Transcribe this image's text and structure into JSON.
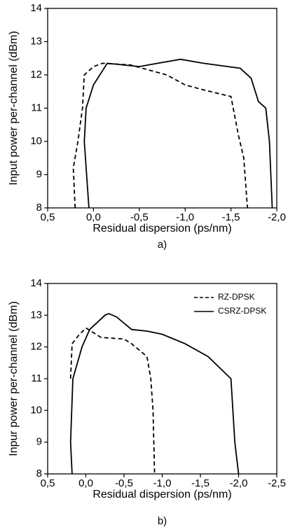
{
  "chart_data": [
    {
      "type": "line",
      "caption": "a)",
      "x_label": "Residual dispersion (ps/nm)",
      "y_label": "Input power per-channel (dBm)",
      "xlim": [
        0.5,
        -2.0
      ],
      "ylim": [
        8,
        14
      ],
      "xticks": [
        {
          "value": 0.5,
          "label": "0,5"
        },
        {
          "value": 0,
          "label": "0,0"
        },
        {
          "value": -0.5,
          "label": "-0,5"
        },
        {
          "value": -1.0,
          "label": "-1,0"
        },
        {
          "value": -1.5,
          "label": "-1,5"
        },
        {
          "value": -2.0,
          "label": "-2,0"
        }
      ],
      "yticks": [
        8,
        9,
        10,
        11,
        12,
        13,
        14
      ],
      "series": [
        {
          "color": "#000000",
          "line_style": "solid",
          "x": [
            0.05,
            0.1,
            0.08,
            0.0,
            -0.15,
            -0.5,
            -0.7,
            -0.95,
            -1.2,
            -1.6,
            -1.72,
            -1.8,
            -1.88,
            -1.92,
            -1.95
          ],
          "values": [
            8,
            10,
            11,
            11.7,
            12.35,
            12.25,
            12.35,
            12.47,
            12.35,
            12.2,
            11.9,
            11.2,
            11,
            10,
            8
          ]
        },
        {
          "color": "#000000",
          "line_style": "dashed",
          "x": [
            0.2,
            0.22,
            0.17,
            0.12,
            0.1,
            0.0,
            -0.1,
            -0.4,
            -0.8,
            -1.0,
            -1.2,
            -1.5,
            -1.58,
            -1.64,
            -1.68
          ],
          "values": [
            8,
            9.2,
            10,
            11,
            12,
            12.25,
            12.35,
            12.3,
            12,
            11.7,
            11.55,
            11.35,
            10.2,
            9.5,
            8
          ]
        }
      ]
    },
    {
      "type": "line",
      "caption": "b)",
      "x_label": "Residual dispersion (ps/nm)",
      "y_label": "Inpur power per-channel (dBm)",
      "xlim": [
        0.5,
        -2.5
      ],
      "ylim": [
        8,
        14
      ],
      "xticks": [
        {
          "value": 0.5,
          "label": "0,5"
        },
        {
          "value": 0,
          "label": "0,0"
        },
        {
          "value": -0.5,
          "label": "-0,5"
        },
        {
          "value": -1.0,
          "label": "-1,0"
        },
        {
          "value": -1.5,
          "label": "-1,5"
        },
        {
          "value": -2.0,
          "label": "-2,0"
        },
        {
          "value": -2.5,
          "label": "-2,5"
        }
      ],
      "yticks": [
        8,
        9,
        10,
        11,
        12,
        13,
        14
      ],
      "legend": "upper right",
      "series": [
        {
          "name": "RZ-DPSK",
          "color": "#000000",
          "line_style": "dashed",
          "x": [
            0.2,
            0.18,
            0.1,
            0.0,
            -0.2,
            -0.5,
            -0.6,
            -0.8,
            -0.85,
            -0.88,
            -0.9
          ],
          "values": [
            11,
            12.1,
            12.35,
            12.6,
            12.3,
            12.25,
            12.1,
            11.7,
            11,
            10,
            8
          ]
        },
        {
          "name": "CSRZ-DPSK",
          "color": "#000000",
          "line_style": "solid",
          "x": [
            0.18,
            0.2,
            0.17,
            0.05,
            -0.05,
            -0.25,
            -0.3,
            -0.4,
            -0.6,
            -0.8,
            -1.0,
            -1.3,
            -1.6,
            -1.9,
            -1.95,
            -2.0
          ],
          "values": [
            8,
            9,
            11,
            12,
            12.55,
            13,
            13.05,
            12.95,
            12.55,
            12.5,
            12.4,
            12.1,
            11.7,
            11,
            9,
            8
          ]
        }
      ]
    }
  ]
}
